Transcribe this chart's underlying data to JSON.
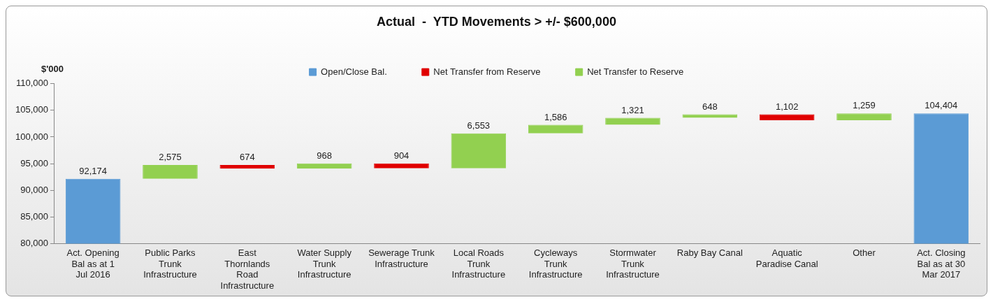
{
  "chart_data": {
    "type": "bar",
    "title": "Actual  -  YTD Movements > +/- $600,000",
    "ylabel": "$'000",
    "categories": [
      "Act. Opening Bal as at 1 Jul 2016",
      "Public Parks Trunk Infrastructure",
      "East Thornlands Road Infrastructure",
      "Water Supply Trunk Infrastructure",
      "Sewerage Trunk Infrastructure",
      "Local Roads Trunk Infrastructure",
      "Cycleways Trunk Infrastructure",
      "Stormwater Trunk Infrastructure",
      "Raby Bay Canal",
      "Aquatic Paradise Canal",
      "Other",
      "Act. Closing Bal as at 30 Mar 2017"
    ],
    "series": [
      {
        "name": "Open/Close Bal.",
        "color": "#5b9bd5",
        "values": [
          92174,
          null,
          null,
          null,
          null,
          null,
          null,
          null,
          null,
          null,
          null,
          104404
        ],
        "value_labels": [
          "92,174",
          null,
          null,
          null,
          null,
          null,
          null,
          null,
          null,
          null,
          null,
          "104,404"
        ]
      },
      {
        "name": "Net Transfer from Reserve",
        "color": "#e00000",
        "values": [
          null,
          null,
          -674,
          null,
          -904,
          null,
          null,
          null,
          null,
          -1102,
          null,
          null
        ],
        "base": [
          null,
          null,
          94749,
          null,
          95043,
          null,
          null,
          null,
          null,
          104247,
          null,
          null
        ],
        "value_labels": [
          null,
          null,
          "674",
          null,
          "904",
          null,
          null,
          null,
          null,
          "1,102",
          null,
          null
        ]
      },
      {
        "name": "Net Transfer to Reserve",
        "color": "#92d050",
        "values": [
          null,
          2575,
          null,
          968,
          null,
          6553,
          1586,
          1321,
          648,
          null,
          1259,
          null
        ],
        "base": [
          null,
          92174,
          null,
          94075,
          null,
          94139,
          100692,
          102278,
          103599,
          null,
          103145,
          null
        ],
        "value_labels": [
          null,
          "2,575",
          null,
          "968",
          null,
          "6,553",
          "1,586",
          "1,321",
          "648",
          null,
          "1,259",
          null
        ]
      }
    ],
    "ylim": [
      80000,
      110000
    ],
    "yticks": [
      {
        "value": 80000,
        "label": "80,000"
      },
      {
        "value": 85000,
        "label": "85,000"
      },
      {
        "value": 90000,
        "label": "90,000"
      },
      {
        "value": 95000,
        "label": "95,000"
      },
      {
        "value": 100000,
        "label": "100,000"
      },
      {
        "value": 105000,
        "label": "105,000"
      },
      {
        "value": 110000,
        "label": "110,000"
      }
    ],
    "grid": false,
    "legend": "top"
  }
}
